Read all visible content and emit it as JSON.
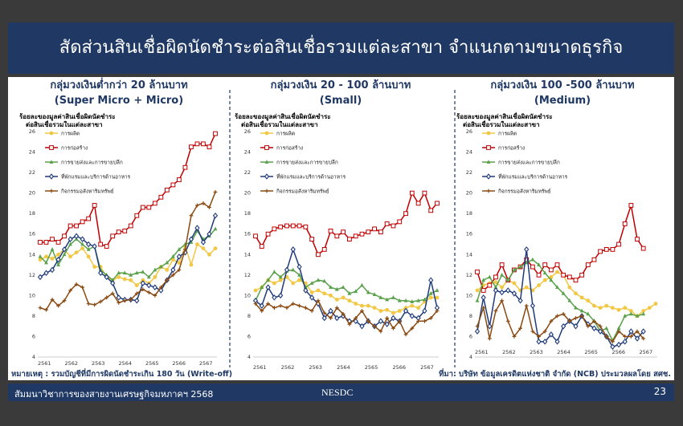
{
  "slide_title": "สัดส่วนสินเชื่อผิดนัดชำระต่อสินเชื่อรวมแต่ละสาขา จำแนกตามขนาดธุรกิจ",
  "footnote_left": "หมายเหตุ : รวมบัญชีที่มีการผิดนัดชำระเกิน 180 วัน (Write-off)",
  "footnote_right": "ที่มา: บริษัท ข้อมูลเครดิตแห่งชาติ จำกัด (NCB) ประมวลผลโดย สศช.",
  "footer": {
    "left": "สัมมนาวิชาการของสายงานเศรษฐกิจมหภาคฯ 2568",
    "center": "NESDC",
    "page": "23"
  },
  "colors": {
    "title_bg": "#1f3864",
    "title_text": "#ffffff",
    "manufacturing": "#f2c744",
    "construction": "#c00000",
    "retail": "#5aa14b",
    "hotel": "#1f3b7a",
    "realestate": "#8a4a12"
  },
  "chart_data": [
    {
      "type": "line",
      "title": "กลุ่มวงเงินต่ำกว่า 20 ล้านบาท",
      "subtitle": "(Super Micro + Micro)",
      "ylabel": [
        "ร้อยละของมูลค่าสินเชื่อผิดนัดชำระ",
        "ต่อสินเชื่อรวมในแต่ละสาขา"
      ],
      "ylim": [
        4,
        26
      ],
      "yticks": [
        4,
        6,
        8,
        10,
        12,
        14,
        16,
        18,
        20,
        22,
        24,
        26
      ],
      "xticks": [
        "2561",
        "2562",
        "2563",
        "2564",
        "2565",
        "2566",
        "2567"
      ],
      "legend": "top-left",
      "series": [
        {
          "name": "การผลิต",
          "color": "#f2c744",
          "marker": "circle",
          "values": [
            13.5,
            13.8,
            13.6,
            14.0,
            14.5,
            13.8,
            14.2,
            14.6,
            13.8,
            12.8,
            12.8,
            11.8,
            11.5,
            11.8,
            11.6,
            11.5,
            11.0,
            11.5,
            11.2,
            11.8,
            12.8,
            12.5,
            13.5,
            13.2,
            14.8,
            13.0,
            15.0,
            14.6,
            14.0,
            14.6
          ]
        },
        {
          "name": "การก่อสร้าง",
          "color": "#c00000",
          "marker": "square",
          "values": [
            15.2,
            15.2,
            15.5,
            15.2,
            15.8,
            16.8,
            16.8,
            17.2,
            17.5,
            18.8,
            15.0,
            14.8,
            15.8,
            16.2,
            16.3,
            16.8,
            17.8,
            18.6,
            18.6,
            19.0,
            19.6,
            20.3,
            20.8,
            21.3,
            22.5,
            24.5,
            24.8,
            24.8,
            24.5,
            25.8
          ]
        },
        {
          "name": "การขายส่งและการขายปลีก",
          "color": "#5aa14b",
          "marker": "triangle",
          "values": [
            13.8,
            13.2,
            14.5,
            13.0,
            14.0,
            15.0,
            15.5,
            15.0,
            14.5,
            14.8,
            12.5,
            12.0,
            11.5,
            12.2,
            12.2,
            12.0,
            12.2,
            12.3,
            11.8,
            12.5,
            12.8,
            13.2,
            13.8,
            14.5,
            15.0,
            15.2,
            16.3,
            15.5,
            15.8,
            16.5
          ]
        },
        {
          "name": "ที่พักแรมและบริการด้านอาหาร",
          "color": "#1f3b7a",
          "marker": "diamond",
          "values": [
            11.8,
            12.2,
            12.5,
            13.5,
            14.5,
            15.5,
            15.8,
            15.5,
            15.0,
            14.8,
            12.2,
            11.8,
            11.2,
            9.8,
            9.6,
            9.6,
            9.5,
            11.2,
            11.0,
            10.8,
            10.5,
            11.5,
            12.5,
            13.8,
            14.2,
            15.5,
            16.6,
            15.2,
            16.0,
            17.8
          ]
        },
        {
          "name": "กิจกรรมอสังหาริมทรัพย์",
          "color": "#8a4a12",
          "marker": "cross",
          "values": [
            8.8,
            8.6,
            9.6,
            9.0,
            9.5,
            10.5,
            11.1,
            10.8,
            9.2,
            9.1,
            9.4,
            9.8,
            10.2,
            9.3,
            9.5,
            9.6,
            10.2,
            10.6,
            10.3,
            10.0,
            10.8,
            11.5,
            12.0,
            12.5,
            14.5,
            17.8,
            18.8,
            19.0,
            18.6,
            20.1
          ]
        }
      ]
    },
    {
      "type": "line",
      "title": "กลุ่มวงเงิน 20 - 100 ล้านบาท",
      "subtitle": "(Small)",
      "ylabel": [
        "ร้อยละของมูลค่าสินเชื่อผิดนัดชำระ",
        "ต่อสินเชื่อรวมในแต่ละสาขา"
      ],
      "ylim": [
        4,
        26
      ],
      "yticks": [
        4,
        6,
        8,
        10,
        12,
        14,
        16,
        18,
        20,
        22,
        24,
        26
      ],
      "xticks": [
        "2561",
        "2562",
        "2563",
        "2564",
        "2565",
        "2566",
        "2567"
      ],
      "legend": "top-left",
      "series": [
        {
          "name": "การผลิต",
          "color": "#f2c744",
          "marker": "circle",
          "values": [
            10.5,
            10.8,
            11.5,
            11.2,
            11.5,
            11.8,
            11.2,
            11.5,
            11.2,
            10.3,
            10.5,
            10.2,
            10.0,
            9.6,
            9.8,
            9.5,
            9.2,
            9.0,
            9.0,
            8.8,
            8.5,
            8.6,
            8.3,
            8.5,
            8.8,
            9.0,
            8.8,
            9.4,
            9.8,
            9.8
          ]
        },
        {
          "name": "การก่อสร้าง",
          "color": "#c00000",
          "marker": "square",
          "values": [
            15.8,
            14.8,
            16.0,
            16.5,
            16.7,
            16.8,
            16.8,
            16.8,
            16.7,
            15.5,
            14.0,
            14.5,
            16.3,
            15.8,
            16.2,
            15.5,
            15.8,
            16.0,
            16.2,
            16.5,
            16.2,
            17.0,
            16.8,
            17.2,
            18.0,
            20.0,
            19.0,
            20.0,
            18.3,
            19.0
          ]
        },
        {
          "name": "การขายส่งและการขายปลีก",
          "color": "#5aa14b",
          "marker": "triangle",
          "values": [
            9.5,
            10.8,
            11.5,
            12.3,
            11.8,
            12.4,
            12.5,
            12.0,
            10.8,
            11.2,
            11.5,
            11.4,
            10.8,
            10.6,
            10.8,
            10.2,
            10.4,
            11.0,
            10.3,
            10.1,
            9.8,
            9.6,
            9.8,
            9.5,
            9.5,
            9.4,
            9.5,
            9.6,
            10.2,
            10.5
          ]
        },
        {
          "name": "ที่พักแรมและบริการด้านอาหาร",
          "color": "#1f3b7a",
          "marker": "diamond",
          "values": [
            9.5,
            9.0,
            10.8,
            9.8,
            10.0,
            12.5,
            14.5,
            12.8,
            10.5,
            9.8,
            9.2,
            7.8,
            8.5,
            7.8,
            8.0,
            7.5,
            7.5,
            7.0,
            7.5,
            7.0,
            7.5,
            7.2,
            7.8,
            7.5,
            8.5,
            8.0,
            7.8,
            8.5,
            11.5,
            8.8
          ]
        },
        {
          "name": "กิจกรรมอสังหาริมทรัพย์",
          "color": "#8a4a12",
          "marker": "cross",
          "values": [
            9.2,
            8.5,
            9.2,
            8.8,
            9.0,
            8.8,
            9.2,
            9.0,
            8.8,
            8.5,
            9.5,
            8.3,
            7.8,
            8.8,
            8.2,
            7.2,
            7.8,
            8.5,
            7.5,
            7.0,
            6.5,
            7.8,
            6.8,
            7.5,
            6.2,
            6.8,
            7.5,
            7.5,
            7.8,
            8.5
          ]
        }
      ]
    },
    {
      "type": "line",
      "title": "กลุ่มวงเงิน 100 -500 ล้านบาท",
      "subtitle": "(Medium)",
      "ylabel": [
        "ร้อยละของมูลค่าสินเชื่อผิดนัดชำระ",
        "ต่อสินเชื่อรวมในแต่ละสาขา"
      ],
      "ylim": [
        4,
        26
      ],
      "yticks": [
        4,
        6,
        8,
        10,
        12,
        14,
        16,
        18,
        20,
        22,
        24,
        26
      ],
      "xticks": [
        "2561",
        "2562",
        "2563",
        "2564",
        "2565",
        "2566",
        "2567"
      ],
      "legend": "top-left",
      "series": [
        {
          "name": "การผลิต",
          "color": "#f2c744",
          "marker": "circle",
          "values": [
            10.5,
            11.0,
            11.2,
            11.3,
            10.8,
            11.5,
            11.2,
            10.5,
            10.8,
            10.5,
            11.0,
            11.5,
            11.8,
            12.3,
            12.0,
            10.8,
            10.2,
            9.8,
            9.5,
            9.0,
            8.8,
            9.0,
            8.8,
            8.6,
            8.8,
            8.5,
            8.0,
            8.5,
            8.8,
            9.2
          ]
        },
        {
          "name": "การก่อสร้าง",
          "color": "#c00000",
          "marker": "square",
          "values": [
            12.3,
            10.5,
            11.0,
            11.8,
            13.0,
            11.5,
            12.5,
            12.8,
            13.5,
            12.8,
            12.0,
            13.0,
            12.5,
            13.0,
            12.0,
            11.8,
            11.5,
            12.0,
            13.0,
            13.5,
            14.3,
            14.5,
            14.5,
            15.0,
            17.0,
            18.8,
            15.5,
            14.6,
            null,
            null
          ]
        },
        {
          "name": "การขายส่งและการขายปลีก",
          "color": "#5aa14b",
          "marker": "triangle",
          "values": [
            9.5,
            11.5,
            11.8,
            10.8,
            12.0,
            11.5,
            12.5,
            12.8,
            13.2,
            13.5,
            13.0,
            12.2,
            11.5,
            10.8,
            10.2,
            9.5,
            8.8,
            8.5,
            8.2,
            7.5,
            6.5,
            6.8,
            5.6,
            6.8,
            8.0,
            8.2,
            8.0,
            8.2,
            null,
            null
          ]
        },
        {
          "name": "ที่พักแรมและบริการด้านอาหาร",
          "color": "#1f3b7a",
          "marker": "diamond",
          "values": [
            6.5,
            9.8,
            7.0,
            10.5,
            10.3,
            10.5,
            10.2,
            9.5,
            14.5,
            9.0,
            5.5,
            5.5,
            6.2,
            5.5,
            7.0,
            7.5,
            7.0,
            8.0,
            7.2,
            6.8,
            6.5,
            6.0,
            5.0,
            5.2,
            5.5,
            6.5,
            5.8,
            6.5,
            null,
            null
          ]
        },
        {
          "name": "กิจกรรมอสังหาริมทรัพย์",
          "color": "#8a4a12",
          "marker": "cross",
          "values": [
            7.0,
            8.8,
            5.8,
            8.5,
            9.5,
            7.5,
            6.0,
            6.8,
            9.0,
            6.5,
            6.0,
            6.5,
            7.5,
            8.0,
            8.2,
            7.5,
            7.8,
            8.0,
            7.0,
            7.5,
            7.0,
            6.0,
            5.5,
            6.5,
            6.0,
            6.0,
            6.5,
            5.8,
            null,
            null
          ]
        }
      ]
    }
  ]
}
